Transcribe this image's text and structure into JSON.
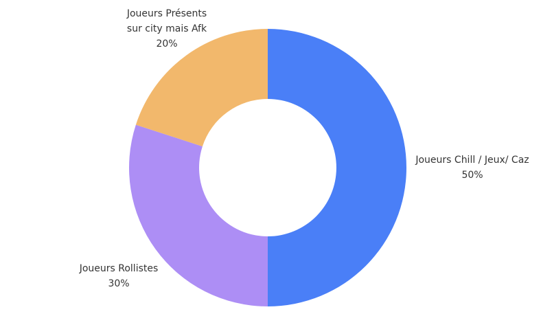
{
  "chart_data": {
    "type": "donut",
    "categories": [
      "Joueurs Chill / Jeux/ Caz",
      "Joueurs Rollistes",
      "Joueurs Présents sur city mais Afk"
    ],
    "values": [
      50,
      30,
      20
    ],
    "value_labels": [
      "50%",
      "30%",
      "20%"
    ],
    "colors": [
      "#4a7ff7",
      "#ad8ef5",
      "#f2b86c"
    ]
  }
}
